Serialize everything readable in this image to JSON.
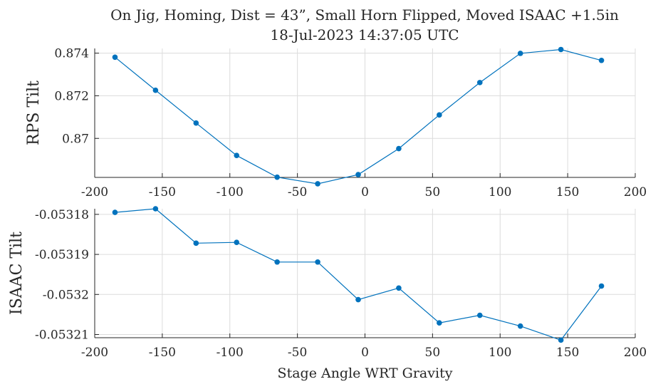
{
  "figure": {
    "title_line1": "On Jig, Homing, Dist = 43”, Small Horn Flipped, Moved ISAAC +1.5in",
    "title_line2": "18-Jul-2023 14:37:05 UTC"
  },
  "colors": {
    "series": "#0072BD",
    "grid": "#dcdcdc",
    "axis": "#262626"
  },
  "chart_data": [
    {
      "type": "line",
      "ylabel": "RPS Tilt",
      "xlabel": "",
      "xlim": [
        -200,
        200
      ],
      "ylim": [
        0.86817,
        0.87422
      ],
      "x_ticks": [
        -200,
        -150,
        -100,
        -50,
        0,
        50,
        100,
        150,
        200
      ],
      "x_tick_labels": [
        "-200",
        "-150",
        "-100",
        "-50",
        "0",
        "50",
        "100",
        "150",
        "200"
      ],
      "y_ticks": [
        0.87,
        0.872,
        0.874
      ],
      "y_tick_labels": [
        "0.87",
        "0.872",
        "0.874"
      ],
      "grid": true,
      "series": [
        {
          "x": [
            -185,
            -155,
            -125,
            -95,
            -65,
            -35,
            -5,
            25,
            55,
            85,
            115,
            145,
            175
          ],
          "y": [
            0.87381,
            0.87226,
            0.87072,
            0.8692,
            0.86818,
            0.86787,
            0.8683,
            0.86952,
            0.8711,
            0.87262,
            0.87399,
            0.87417,
            0.87366
          ]
        }
      ]
    },
    {
      "type": "line",
      "ylabel": "ISAAC Tilt",
      "xlabel": "Stage Angle WRT Gravity",
      "xlim": [
        -200,
        200
      ],
      "ylim": [
        -0.0532108,
        -0.0531786
      ],
      "x_ticks": [
        -200,
        -150,
        -100,
        -50,
        0,
        50,
        100,
        150,
        200
      ],
      "x_tick_labels": [
        "-200",
        "-150",
        "-100",
        "-50",
        "0",
        "50",
        "100",
        "150",
        "200"
      ],
      "y_ticks": [
        -0.05321,
        -0.0532,
        -0.05319,
        -0.05318
      ],
      "y_tick_labels": [
        "-0.05321",
        "-0.0532",
        "-0.05319",
        "-0.05318"
      ],
      "grid": true,
      "series": [
        {
          "x": [
            -185,
            -155,
            -125,
            -95,
            -65,
            -35,
            -5,
            25,
            55,
            85,
            115,
            145,
            175
          ],
          "y": [
            -0.0531795,
            -0.0531786,
            -0.0531872,
            -0.053187,
            -0.0531919,
            -0.0531919,
            -0.0532013,
            -0.0531984,
            -0.0532071,
            -0.0532052,
            -0.0532079,
            -0.0532114,
            -0.0531979
          ]
        }
      ]
    }
  ]
}
